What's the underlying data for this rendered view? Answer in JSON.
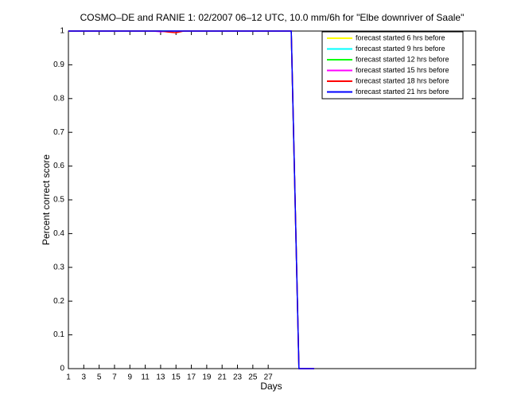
{
  "chart_data": {
    "type": "line",
    "title": "COSMO–DE and RANIE 1: 02/2007 06–12 UTC, 10.0 mm/6h for \"Elbe downriver of Saale\"",
    "xlabel": "Days",
    "ylabel": "Percent correct score",
    "x": [
      1,
      2,
      3,
      4,
      5,
      6,
      7,
      8,
      9,
      10,
      11,
      12,
      13,
      14,
      15,
      16,
      17,
      18,
      19,
      20,
      21,
      22,
      23,
      24,
      25,
      26,
      27,
      28,
      29,
      30,
      31,
      32,
      33
    ],
    "series": [
      {
        "name": "forecast started 6 hrs before",
        "color": "#ffff00",
        "values": [
          1,
          1,
          1,
          1,
          1,
          1,
          1,
          1,
          1,
          1,
          1,
          1,
          1,
          1,
          1,
          1,
          1,
          1,
          1,
          1,
          1,
          1,
          1,
          1,
          1,
          1,
          1,
          1,
          1,
          1,
          0,
          0,
          0
        ]
      },
      {
        "name": "forecast started 9 hrs before",
        "color": "#00ffff",
        "values": [
          1,
          1,
          1,
          1,
          1,
          1,
          1,
          1,
          1,
          1,
          1,
          1,
          1,
          1,
          1,
          1,
          1,
          1,
          1,
          1,
          1,
          1,
          1,
          1,
          1,
          1,
          1,
          1,
          1,
          1,
          0,
          0,
          0
        ]
      },
      {
        "name": "forecast started 12 hrs before",
        "color": "#00ff00",
        "values": [
          1,
          1,
          1,
          1,
          1,
          1,
          1,
          1,
          1,
          1,
          1,
          1,
          1,
          1,
          1,
          1,
          1,
          1,
          1,
          1,
          1,
          1,
          1,
          1,
          1,
          1,
          1,
          1,
          1,
          1,
          0,
          0,
          0
        ]
      },
      {
        "name": "forecast started 15 hrs before",
        "color": "#ff00ff",
        "values": [
          1,
          1,
          1,
          1,
          1,
          1,
          1,
          1,
          1,
          1,
          1,
          1,
          0.998,
          1,
          1,
          1,
          1,
          1,
          1,
          1,
          1,
          1,
          1,
          1,
          1,
          1,
          1,
          1,
          1,
          1,
          0,
          0,
          0
        ]
      },
      {
        "name": "forecast started 18 hrs before",
        "color": "#ff0000",
        "values": [
          1,
          1,
          1,
          1,
          1,
          1,
          1,
          1,
          1,
          1,
          1,
          1,
          1,
          0.997,
          0.995,
          1,
          1,
          1,
          1,
          1,
          1,
          1,
          1,
          1,
          1,
          1,
          1,
          1,
          1,
          1,
          0,
          0,
          0
        ]
      },
      {
        "name": "forecast started 21 hrs before",
        "color": "#0000ff",
        "values": [
          1,
          1,
          1,
          1,
          1,
          1,
          1,
          1,
          1,
          1,
          1,
          1,
          1,
          1,
          1,
          1,
          1,
          1,
          1,
          1,
          1,
          1,
          1,
          1,
          1,
          1,
          1,
          1,
          1,
          1,
          0,
          0,
          0
        ]
      }
    ],
    "xlim": [
      1,
      54
    ],
    "ylim": [
      0,
      1
    ],
    "xticks": [
      1,
      3,
      5,
      7,
      9,
      11,
      13,
      15,
      17,
      19,
      21,
      23,
      25,
      27
    ],
    "yticks": [
      0,
      0.1,
      0.2,
      0.3,
      0.4,
      0.5,
      0.6,
      0.7,
      0.8,
      0.9,
      1
    ],
    "grid": false,
    "legend": "top-right"
  }
}
